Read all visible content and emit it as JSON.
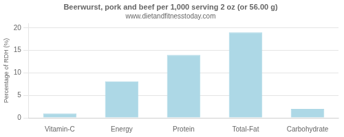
{
  "chart_data": {
    "type": "bar",
    "title": "Beerwurst, pork and beef per 1,000 serving 2 oz (or 56.00 g)",
    "subtitle": "www.dietandfitnesstoday.com",
    "categories": [
      "Vitamin-C",
      "Energy",
      "Protein",
      "Total-Fat",
      "Carbohydrate"
    ],
    "values": [
      1.0,
      8.1,
      14.0,
      19.0,
      2.0
    ],
    "color": "#add8e6",
    "ylabel": "Percentage of RDH (%)",
    "ylim": [
      0,
      21
    ],
    "yticks": [
      0,
      5,
      10,
      15,
      20
    ],
    "grid": true
  }
}
